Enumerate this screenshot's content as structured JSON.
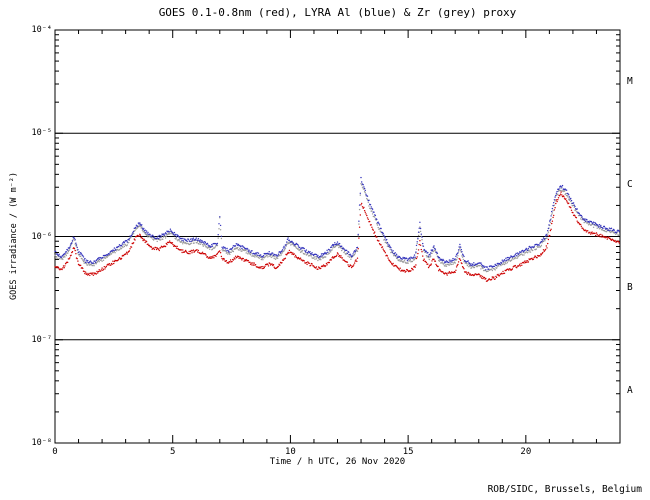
{
  "chart_data": {
    "type": "scatter",
    "title": "GOES 0.1-0.8nm (red), LYRA Al (blue) & Zr (grey) proxy",
    "xlabel": "Time / h UTC, 26 Nov 2020",
    "ylabel": "GOES irradiance / (W m⁻²)",
    "credit": "ROB/SIDC, Brussels, Belgium",
    "background": "#ffffff",
    "axis_color": "#000000",
    "xlim": [
      0,
      24
    ],
    "x_major_ticks": [
      0,
      5,
      10,
      15,
      20
    ],
    "x_minor_step": 1,
    "ylog": true,
    "ylim_exp": [
      -8,
      -4
    ],
    "y_ticks": [
      {
        "exp": -4,
        "label": "10⁻⁴"
      },
      {
        "exp": -5,
        "label": "10⁻⁵"
      },
      {
        "exp": -6,
        "label": "10⁻⁶"
      },
      {
        "exp": -7,
        "label": "10⁻⁷"
      },
      {
        "exp": -8,
        "label": "10⁻⁸"
      }
    ],
    "hlines_exp": [
      -5,
      -6,
      -7
    ],
    "flare_classes": [
      {
        "label": "M",
        "exp_range": [
          -5,
          -4
        ]
      },
      {
        "label": "C",
        "exp_range": [
          -6,
          -5
        ]
      },
      {
        "label": "B",
        "exp_range": [
          -7,
          -6
        ]
      },
      {
        "label": "A",
        "exp_range": [
          -8,
          -7
        ]
      }
    ],
    "legend_note": "colors given in title",
    "series": [
      {
        "name": "GOES 0.1-0.8nm",
        "color": "#cc0000",
        "points": [
          [
            0,
            5.2e-07
          ],
          [
            0.3,
            4.8e-07
          ],
          [
            0.6,
            6e-07
          ],
          [
            0.8,
            7.8e-07
          ],
          [
            1.0,
            5.5e-07
          ],
          [
            1.3,
            4.4e-07
          ],
          [
            1.6,
            4.3e-07
          ],
          [
            2.0,
            4.8e-07
          ],
          [
            2.4,
            5.5e-07
          ],
          [
            2.8,
            6.2e-07
          ],
          [
            3.1,
            7e-07
          ],
          [
            3.4,
            9.5e-07
          ],
          [
            3.6,
            1.05e-06
          ],
          [
            3.8,
            9e-07
          ],
          [
            4.1,
            7.8e-07
          ],
          [
            4.4,
            7.5e-07
          ],
          [
            4.7,
            8.2e-07
          ],
          [
            4.9,
            9e-07
          ],
          [
            5.1,
            8e-07
          ],
          [
            5.4,
            7.2e-07
          ],
          [
            5.7,
            7e-07
          ],
          [
            6.0,
            7.4e-07
          ],
          [
            6.3,
            6.8e-07
          ],
          [
            6.6,
            6.2e-07
          ],
          [
            6.9,
            6.6e-07
          ],
          [
            7.0,
            7.2e-07
          ],
          [
            7.1,
            6e-07
          ],
          [
            7.4,
            5.6e-07
          ],
          [
            7.7,
            6.4e-07
          ],
          [
            8.0,
            6e-07
          ],
          [
            8.4,
            5.4e-07
          ],
          [
            8.8,
            5e-07
          ],
          [
            9.1,
            5.4e-07
          ],
          [
            9.4,
            5e-07
          ],
          [
            9.7,
            5.8e-07
          ],
          [
            9.9,
            7.2e-07
          ],
          [
            10.1,
            6.8e-07
          ],
          [
            10.4,
            6e-07
          ],
          [
            10.8,
            5.4e-07
          ],
          [
            11.2,
            4.9e-07
          ],
          [
            11.5,
            5.3e-07
          ],
          [
            11.8,
            6.2e-07
          ],
          [
            12.0,
            6.8e-07
          ],
          [
            12.3,
            5.8e-07
          ],
          [
            12.6,
            5e-07
          ],
          [
            12.85,
            6e-07
          ],
          [
            13.0,
            2.1e-06
          ],
          [
            13.15,
            1.8e-06
          ],
          [
            13.4,
            1.3e-06
          ],
          [
            13.7,
            9.5e-07
          ],
          [
            14.0,
            7e-07
          ],
          [
            14.3,
            5.5e-07
          ],
          [
            14.6,
            4.8e-07
          ],
          [
            15.0,
            4.6e-07
          ],
          [
            15.3,
            5e-07
          ],
          [
            15.5,
            9e-07
          ],
          [
            15.65,
            6e-07
          ],
          [
            15.9,
            5e-07
          ],
          [
            16.1,
            6.2e-07
          ],
          [
            16.3,
            4.8e-07
          ],
          [
            16.6,
            4.3e-07
          ],
          [
            17.0,
            4.6e-07
          ],
          [
            17.2,
            6.2e-07
          ],
          [
            17.4,
            4.6e-07
          ],
          [
            17.7,
            4.1e-07
          ],
          [
            18.0,
            4.3e-07
          ],
          [
            18.3,
            3.8e-07
          ],
          [
            18.7,
            4e-07
          ],
          [
            19.0,
            4.4e-07
          ],
          [
            19.4,
            4.9e-07
          ],
          [
            19.8,
            5.4e-07
          ],
          [
            20.2,
            6e-07
          ],
          [
            20.6,
            6.6e-07
          ],
          [
            20.9,
            8e-07
          ],
          [
            21.1,
            1.3e-06
          ],
          [
            21.3,
            2.2e-06
          ],
          [
            21.5,
            2.6e-06
          ],
          [
            21.7,
            2.3e-06
          ],
          [
            22.0,
            1.7e-06
          ],
          [
            22.3,
            1.3e-06
          ],
          [
            22.6,
            1.1e-06
          ],
          [
            23.0,
            1.05e-06
          ],
          [
            23.4,
            9.8e-07
          ],
          [
            23.7,
            9.2e-07
          ],
          [
            24.0,
            8.8e-07
          ]
        ]
      },
      {
        "name": "LYRA Al proxy",
        "color": "#3333bb",
        "points": [
          [
            0,
            7e-07
          ],
          [
            0.3,
            6.4e-07
          ],
          [
            0.6,
            7.8e-07
          ],
          [
            0.8,
            1e-06
          ],
          [
            1.0,
            7.2e-07
          ],
          [
            1.3,
            5.8e-07
          ],
          [
            1.6,
            5.6e-07
          ],
          [
            2.0,
            6.3e-07
          ],
          [
            2.4,
            7.2e-07
          ],
          [
            2.8,
            8.2e-07
          ],
          [
            3.1,
            9.2e-07
          ],
          [
            3.4,
            1.2e-06
          ],
          [
            3.6,
            1.35e-06
          ],
          [
            3.8,
            1.15e-06
          ],
          [
            4.1,
            1e-06
          ],
          [
            4.4,
            9.8e-07
          ],
          [
            4.7,
            1.07e-06
          ],
          [
            4.9,
            1.15e-06
          ],
          [
            5.1,
            1.04e-06
          ],
          [
            5.4,
            9.4e-07
          ],
          [
            5.7,
            9.1e-07
          ],
          [
            6.0,
            9.6e-07
          ],
          [
            6.3,
            8.8e-07
          ],
          [
            6.6,
            8.1e-07
          ],
          [
            6.9,
            8.6e-07
          ],
          [
            7.0,
            1.6e-06
          ],
          [
            7.1,
            7.8e-07
          ],
          [
            7.4,
            7.3e-07
          ],
          [
            7.7,
            8.3e-07
          ],
          [
            8.0,
            7.8e-07
          ],
          [
            8.4,
            7e-07
          ],
          [
            8.8,
            6.5e-07
          ],
          [
            9.1,
            7e-07
          ],
          [
            9.4,
            6.5e-07
          ],
          [
            9.7,
            7.5e-07
          ],
          [
            9.9,
            9.4e-07
          ],
          [
            10.1,
            8.8e-07
          ],
          [
            10.4,
            7.8e-07
          ],
          [
            10.8,
            7e-07
          ],
          [
            11.2,
            6.4e-07
          ],
          [
            11.5,
            6.9e-07
          ],
          [
            11.8,
            8.1e-07
          ],
          [
            12.0,
            8.8e-07
          ],
          [
            12.3,
            7.5e-07
          ],
          [
            12.6,
            6.5e-07
          ],
          [
            12.85,
            7.8e-07
          ],
          [
            13.0,
            3.6e-06
          ],
          [
            13.15,
            2.9e-06
          ],
          [
            13.4,
            2e-06
          ],
          [
            13.7,
            1.4e-06
          ],
          [
            14.0,
            9.8e-07
          ],
          [
            14.3,
            7.4e-07
          ],
          [
            14.6,
            6.2e-07
          ],
          [
            15.0,
            6e-07
          ],
          [
            15.3,
            6.5e-07
          ],
          [
            15.5,
            1.35e-06
          ],
          [
            15.65,
            7.8e-07
          ],
          [
            15.9,
            6.5e-07
          ],
          [
            16.1,
            8.1e-07
          ],
          [
            16.3,
            6.2e-07
          ],
          [
            16.6,
            5.6e-07
          ],
          [
            17.0,
            6e-07
          ],
          [
            17.2,
            8.1e-07
          ],
          [
            17.4,
            6e-07
          ],
          [
            17.7,
            5.3e-07
          ],
          [
            18.0,
            5.6e-07
          ],
          [
            18.3,
            4.9e-07
          ],
          [
            18.7,
            5.2e-07
          ],
          [
            19.0,
            5.7e-07
          ],
          [
            19.4,
            6.4e-07
          ],
          [
            19.8,
            7e-07
          ],
          [
            20.2,
            7.8e-07
          ],
          [
            20.6,
            8.6e-07
          ],
          [
            20.9,
            1.04e-06
          ],
          [
            21.1,
            1.7e-06
          ],
          [
            21.3,
            2.7e-06
          ],
          [
            21.5,
            3.1e-06
          ],
          [
            21.7,
            2.8e-06
          ],
          [
            22.0,
            2.1e-06
          ],
          [
            22.3,
            1.6e-06
          ],
          [
            22.6,
            1.4e-06
          ],
          [
            23.0,
            1.3e-06
          ],
          [
            23.4,
            1.2e-06
          ],
          [
            23.7,
            1.15e-06
          ],
          [
            24.0,
            1.1e-06
          ]
        ]
      },
      {
        "name": "LYRA Zr proxy",
        "color": "#999999",
        "points": [
          [
            0,
            6.5e-07
          ],
          [
            0.3,
            6e-07
          ],
          [
            0.6,
            7.3e-07
          ],
          [
            0.8,
            9.5e-07
          ],
          [
            1.0,
            6.8e-07
          ],
          [
            1.3,
            5.4e-07
          ],
          [
            1.6,
            5.3e-07
          ],
          [
            2.0,
            5.9e-07
          ],
          [
            2.4,
            6.8e-07
          ],
          [
            2.8,
            7.7e-07
          ],
          [
            3.1,
            8.6e-07
          ],
          [
            3.4,
            1.15e-06
          ],
          [
            3.6,
            1.28e-06
          ],
          [
            3.8,
            1.1e-06
          ],
          [
            4.1,
            9.5e-07
          ],
          [
            4.4,
            9.2e-07
          ],
          [
            4.7,
            1e-06
          ],
          [
            4.9,
            1.1e-06
          ],
          [
            5.1,
            9.8e-07
          ],
          [
            5.4,
            8.8e-07
          ],
          [
            5.7,
            8.6e-07
          ],
          [
            6.0,
            9e-07
          ],
          [
            6.3,
            8.3e-07
          ],
          [
            6.6,
            7.6e-07
          ],
          [
            6.9,
            8.1e-07
          ],
          [
            7.0,
            1.5e-06
          ],
          [
            7.1,
            7.3e-07
          ],
          [
            7.4,
            6.8e-07
          ],
          [
            7.7,
            7.8e-07
          ],
          [
            8.0,
            7.3e-07
          ],
          [
            8.4,
            6.6e-07
          ],
          [
            8.8,
            6.1e-07
          ],
          [
            9.1,
            6.6e-07
          ],
          [
            9.4,
            6.1e-07
          ],
          [
            9.7,
            7.1e-07
          ],
          [
            9.9,
            8.8e-07
          ],
          [
            10.1,
            8.3e-07
          ],
          [
            10.4,
            7.3e-07
          ],
          [
            10.8,
            6.6e-07
          ],
          [
            11.2,
            6e-07
          ],
          [
            11.5,
            6.5e-07
          ],
          [
            11.8,
            7.6e-07
          ],
          [
            12.0,
            8.3e-07
          ],
          [
            12.3,
            7.1e-07
          ],
          [
            12.6,
            6.1e-07
          ],
          [
            12.85,
            7.3e-07
          ],
          [
            13.0,
            3.3e-06
          ],
          [
            13.15,
            2.7e-06
          ],
          [
            13.4,
            1.85e-06
          ],
          [
            13.7,
            1.3e-06
          ],
          [
            14.0,
            9.2e-07
          ],
          [
            14.3,
            7e-07
          ],
          [
            14.6,
            5.9e-07
          ],
          [
            15.0,
            5.6e-07
          ],
          [
            15.3,
            6.1e-07
          ],
          [
            15.5,
            1.25e-06
          ],
          [
            15.65,
            7.3e-07
          ],
          [
            15.9,
            6.1e-07
          ],
          [
            16.1,
            7.6e-07
          ],
          [
            16.3,
            5.9e-07
          ],
          [
            16.6,
            5.2e-07
          ],
          [
            17.0,
            5.6e-07
          ],
          [
            17.2,
            7.6e-07
          ],
          [
            17.4,
            5.6e-07
          ],
          [
            17.7,
            5e-07
          ],
          [
            18.0,
            5.2e-07
          ],
          [
            18.3,
            4.6e-07
          ],
          [
            18.7,
            4.9e-07
          ],
          [
            19.0,
            5.4e-07
          ],
          [
            19.4,
            6e-07
          ],
          [
            19.8,
            6.6e-07
          ],
          [
            20.2,
            7.3e-07
          ],
          [
            20.6,
            8.1e-07
          ],
          [
            20.9,
            9.8e-07
          ],
          [
            21.1,
            1.6e-06
          ],
          [
            21.3,
            2.5e-06
          ],
          [
            21.5,
            2.9e-06
          ],
          [
            21.7,
            2.6e-06
          ],
          [
            22.0,
            2e-06
          ],
          [
            22.3,
            1.55e-06
          ],
          [
            22.6,
            1.32e-06
          ],
          [
            23.0,
            1.25e-06
          ],
          [
            23.4,
            1.15e-06
          ],
          [
            23.7,
            1.1e-06
          ],
          [
            24.0,
            1.05e-06
          ]
        ]
      }
    ]
  }
}
